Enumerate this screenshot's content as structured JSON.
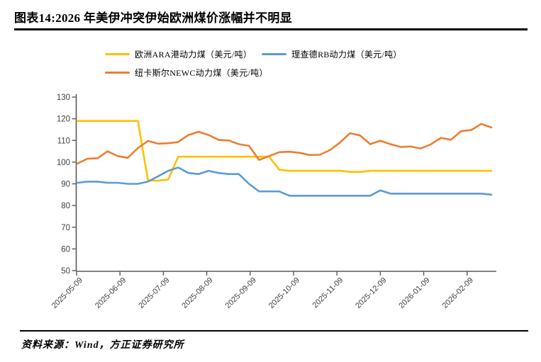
{
  "page": {
    "title": "图表14:2026 年美伊冲突伊始欧洲煤价涨幅并不明显",
    "source": "资料来源：Wind，方正证券研究所"
  },
  "chart_data": {
    "type": "line",
    "title": "图表14:2026 年美伊冲突伊始欧洲煤价涨幅并不明显",
    "xlabel": "",
    "ylabel": "",
    "ylim": [
      50,
      130
    ],
    "y_ticks": [
      50,
      60,
      70,
      80,
      90,
      100,
      110,
      120,
      130
    ],
    "grid": false,
    "legend_position": "top",
    "x_tick_labels": [
      "2025-05-09",
      "2025-06-09",
      "2025-07-09",
      "2025-08-09",
      "2025-09-09",
      "2025-10-09",
      "2025-11-09",
      "2025-12-09",
      "2026-01-09",
      "2026-02-09"
    ],
    "x": [
      "2025-05-09",
      "2025-05-16",
      "2025-05-23",
      "2025-05-30",
      "2025-06-06",
      "2025-06-13",
      "2025-06-20",
      "2025-06-27",
      "2025-07-04",
      "2025-07-11",
      "2025-07-18",
      "2025-07-25",
      "2025-08-01",
      "2025-08-08",
      "2025-08-15",
      "2025-08-22",
      "2025-08-29",
      "2025-09-05",
      "2025-09-12",
      "2025-09-19",
      "2025-09-26",
      "2025-10-03",
      "2025-10-10",
      "2025-10-17",
      "2025-10-24",
      "2025-10-31",
      "2025-11-07",
      "2025-11-14",
      "2025-11-21",
      "2025-11-28",
      "2025-12-05",
      "2025-12-12",
      "2025-12-19",
      "2025-12-26",
      "2026-01-02",
      "2026-01-09",
      "2026-01-16",
      "2026-01-23",
      "2026-01-30",
      "2026-02-06",
      "2026-02-13",
      "2026-02-20"
    ],
    "series": [
      {
        "name": "欧洲ARA港动力煤（美元/吨）",
        "color": "#FFC000",
        "values": [
          119,
          119,
          119,
          119,
          119,
          119,
          119,
          91.5,
          91.5,
          92,
          102.5,
          102.5,
          102.5,
          102.5,
          102.5,
          102.5,
          102.5,
          102.5,
          102.5,
          102.5,
          96.5,
          96,
          96,
          96,
          96,
          96,
          96,
          95.5,
          95.5,
          96,
          96,
          96,
          96,
          96,
          96,
          96,
          96,
          96,
          96,
          96,
          96,
          96
        ]
      },
      {
        "name": "理查德RB动力煤（美元/吨）",
        "color": "#5B9BD5",
        "values": [
          90.5,
          91,
          91,
          90.5,
          90.5,
          90,
          90,
          91,
          93.5,
          96,
          97.5,
          95,
          94.5,
          96,
          95,
          94.5,
          94.5,
          90,
          86.5,
          86.5,
          86.5,
          84.5,
          84.5,
          84.5,
          84.5,
          84.5,
          84.5,
          84.5,
          84.5,
          84.5,
          87,
          85.5,
          85.5,
          85.5,
          85.5,
          85.5,
          85.5,
          85.5,
          85.5,
          85.5,
          85.5,
          85
        ]
      },
      {
        "name": "纽卡斯尔NEWC动力煤（美元/吨）",
        "color": "#ED7D31",
        "values": [
          99.3,
          101.6,
          101.8,
          105,
          102.8,
          102,
          106.5,
          109.8,
          108.5,
          108.7,
          109.3,
          112.5,
          114,
          112.5,
          110.2,
          110,
          108.3,
          107.5,
          101,
          102.8,
          104.6,
          104.8,
          104.3,
          103.3,
          103.4,
          105.5,
          109,
          113.3,
          112.3,
          108.3,
          109.9,
          108.3,
          107,
          107.2,
          106.3,
          108.2,
          111.2,
          110.3,
          114.3,
          114.8,
          117.6,
          116
        ]
      }
    ]
  }
}
